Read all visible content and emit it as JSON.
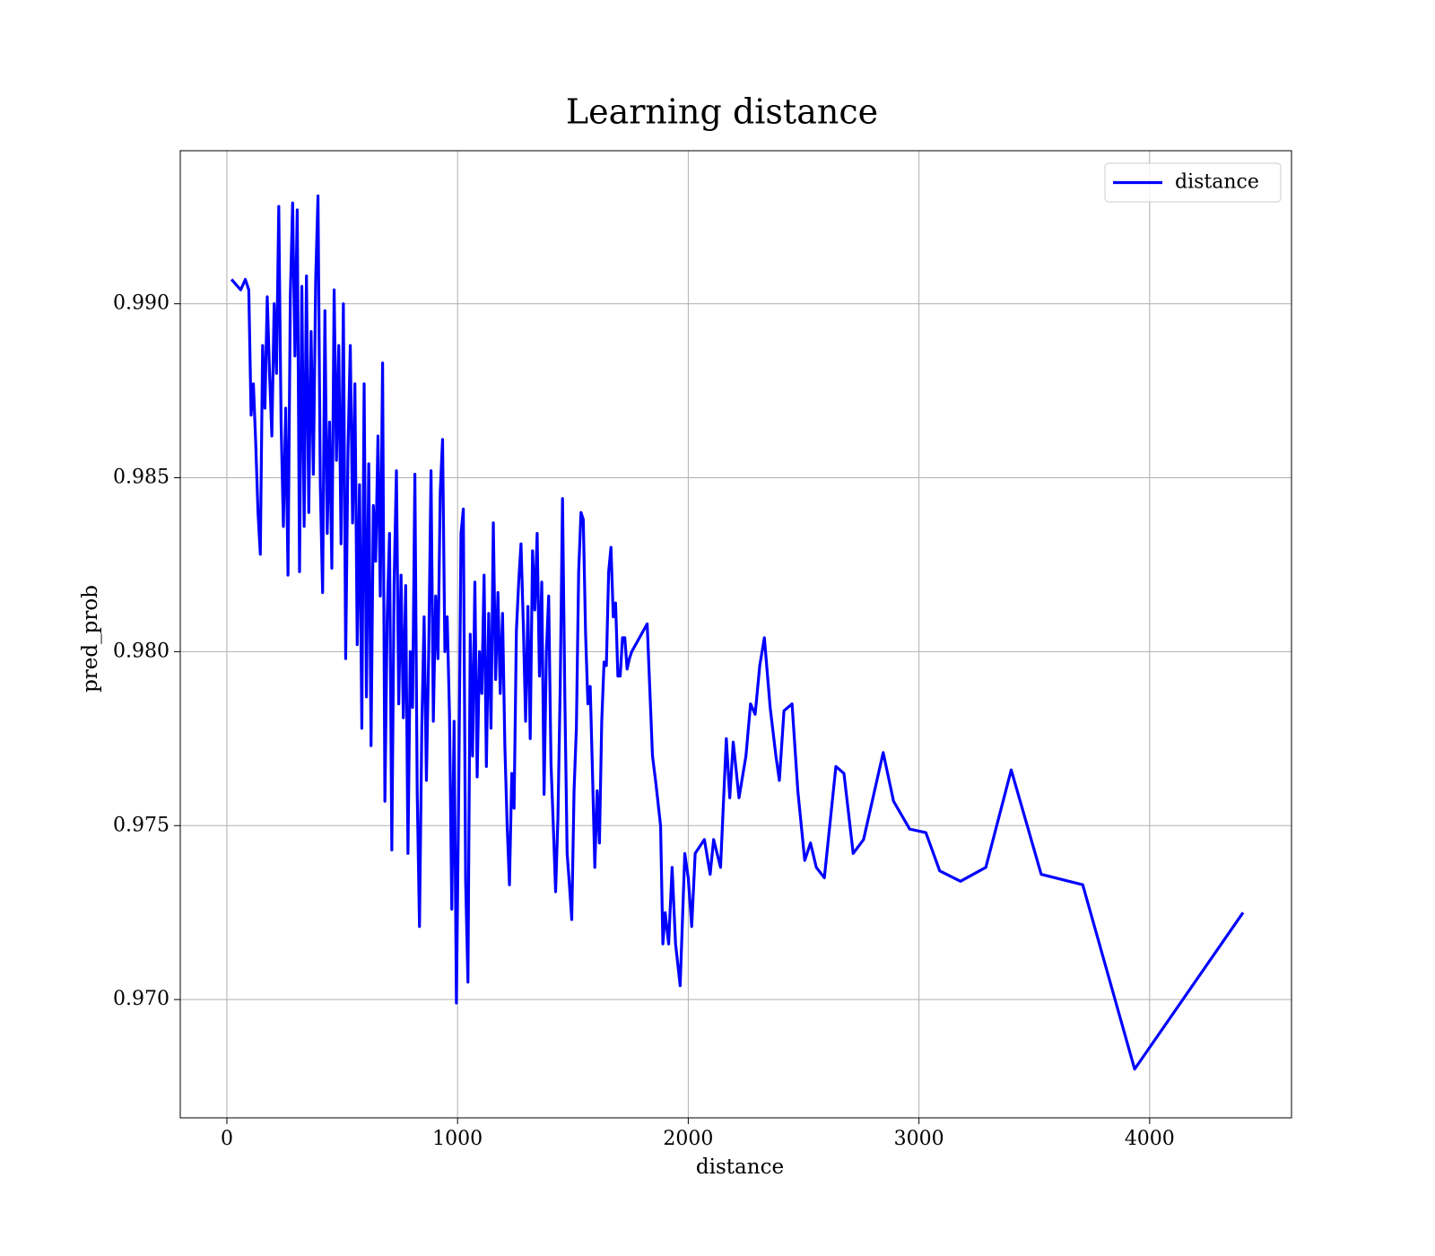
{
  "chart_data": {
    "type": "line",
    "title": "Learning distance",
    "x_label": "distance",
    "y_label": "pred_prob",
    "x": [
      20,
      60,
      80,
      95,
      105,
      115,
      125,
      135,
      145,
      155,
      165,
      175,
      185,
      195,
      205,
      215,
      225,
      235,
      245,
      255,
      265,
      275,
      285,
      295,
      305,
      315,
      325,
      335,
      345,
      355,
      365,
      375,
      385,
      395,
      405,
      415,
      425,
      435,
      445,
      455,
      465,
      475,
      485,
      495,
      505,
      515,
      525,
      535,
      545,
      555,
      565,
      575,
      585,
      595,
      605,
      615,
      625,
      635,
      645,
      655,
      665,
      675,
      685,
      695,
      705,
      715,
      725,
      735,
      745,
      755,
      765,
      775,
      785,
      795,
      805,
      815,
      825,
      835,
      845,
      855,
      865,
      875,
      885,
      895,
      905,
      915,
      925,
      935,
      945,
      955,
      965,
      975,
      985,
      995,
      1005,
      1015,
      1025,
      1035,
      1045,
      1055,
      1065,
      1075,
      1085,
      1095,
      1105,
      1115,
      1125,
      1135,
      1145,
      1155,
      1165,
      1175,
      1185,
      1195,
      1205,
      1215,
      1225,
      1235,
      1245,
      1255,
      1265,
      1275,
      1285,
      1295,
      1305,
      1315,
      1325,
      1335,
      1345,
      1355,
      1365,
      1375,
      1385,
      1395,
      1405,
      1415,
      1425,
      1435,
      1445,
      1455,
      1465,
      1475,
      1485,
      1495,
      1505,
      1515,
      1525,
      1535,
      1545,
      1555,
      1565,
      1575,
      1585,
      1595,
      1605,
      1615,
      1625,
      1635,
      1645,
      1655,
      1665,
      1675,
      1685,
      1695,
      1705,
      1715,
      1725,
      1735,
      1745,
      1755,
      1822,
      1845,
      1860,
      1880,
      1890,
      1900,
      1915,
      1930,
      1945,
      1965,
      1985,
      2000,
      2015,
      2030,
      2050,
      2070,
      2095,
      2110,
      2140,
      2165,
      2180,
      2195,
      2220,
      2250,
      2270,
      2290,
      2310,
      2330,
      2355,
      2380,
      2395,
      2415,
      2450,
      2475,
      2505,
      2530,
      2555,
      2590,
      2640,
      2675,
      2715,
      2760,
      2845,
      2890,
      2960,
      3030,
      3090,
      3180,
      3290,
      3400,
      3530,
      3710,
      3935,
      4405
    ],
    "series": [
      {
        "name": "distance",
        "color": "#0000ff",
        "values": [
          0.9907,
          0.9904,
          0.9907,
          0.9904,
          0.9868,
          0.9877,
          0.986,
          0.984,
          0.9828,
          0.9888,
          0.987,
          0.9902,
          0.988,
          0.9862,
          0.99,
          0.988,
          0.9928,
          0.9866,
          0.9836,
          0.987,
          0.9822,
          0.9902,
          0.9929,
          0.9885,
          0.9927,
          0.9823,
          0.9905,
          0.9836,
          0.9908,
          0.984,
          0.9892,
          0.9851,
          0.9907,
          0.9931,
          0.9848,
          0.9817,
          0.9898,
          0.9834,
          0.9866,
          0.9824,
          0.9904,
          0.9855,
          0.9888,
          0.9831,
          0.99,
          0.9798,
          0.9858,
          0.9888,
          0.9837,
          0.9877,
          0.9802,
          0.9848,
          0.9778,
          0.9877,
          0.9787,
          0.9854,
          0.9773,
          0.9842,
          0.9826,
          0.9862,
          0.9816,
          0.9883,
          0.9757,
          0.981,
          0.9834,
          0.9743,
          0.982,
          0.9852,
          0.9785,
          0.9822,
          0.9781,
          0.9819,
          0.9742,
          0.98,
          0.9784,
          0.9851,
          0.976,
          0.9721,
          0.9778,
          0.981,
          0.9763,
          0.98,
          0.9852,
          0.978,
          0.9816,
          0.9798,
          0.9846,
          0.9861,
          0.98,
          0.981,
          0.9782,
          0.9726,
          0.978,
          0.9699,
          0.976,
          0.9834,
          0.9841,
          0.9734,
          0.9705,
          0.9805,
          0.977,
          0.982,
          0.9764,
          0.98,
          0.9788,
          0.9822,
          0.9767,
          0.9811,
          0.9778,
          0.9837,
          0.9792,
          0.9817,
          0.9788,
          0.9811,
          0.9773,
          0.975,
          0.9733,
          0.9765,
          0.9755,
          0.9806,
          0.982,
          0.9831,
          0.9808,
          0.978,
          0.9813,
          0.9775,
          0.9829,
          0.9812,
          0.9834,
          0.9793,
          0.982,
          0.9759,
          0.98,
          0.9816,
          0.9768,
          0.975,
          0.9731,
          0.9752,
          0.979,
          0.9844,
          0.9787,
          0.9742,
          0.9733,
          0.9723,
          0.976,
          0.9778,
          0.9823,
          0.984,
          0.9838,
          0.9805,
          0.9785,
          0.979,
          0.9765,
          0.9738,
          0.976,
          0.9745,
          0.978,
          0.9797,
          0.9796,
          0.9823,
          0.983,
          0.981,
          0.9814,
          0.9793,
          0.9793,
          0.9804,
          0.9804,
          0.9795,
          0.9798,
          0.98,
          0.9808,
          0.977,
          0.9762,
          0.975,
          0.9716,
          0.9725,
          0.9716,
          0.9738,
          0.9716,
          0.9704,
          0.9742,
          0.9735,
          0.9721,
          0.9742,
          0.9744,
          0.9746,
          0.9736,
          0.9746,
          0.9738,
          0.9775,
          0.9758,
          0.9774,
          0.9758,
          0.977,
          0.9785,
          0.9782,
          0.9796,
          0.9804,
          0.9784,
          0.977,
          0.9763,
          0.9783,
          0.9785,
          0.976,
          0.974,
          0.9745,
          0.9738,
          0.9735,
          0.9767,
          0.9765,
          0.9742,
          0.9746,
          0.9771,
          0.9757,
          0.9749,
          0.9748,
          0.9737,
          0.9734,
          0.9738,
          0.9766,
          0.9736,
          0.9733,
          0.968,
          0.9725
        ]
      }
    ],
    "xlim": [
      -202,
      4615
    ],
    "xticks": [
      0,
      1000,
      2000,
      3000,
      4000
    ],
    "ylim": [
      0.9666,
      0.9944
    ],
    "yticks": [
      {
        "value": 0.97,
        "label": "0.970"
      },
      0.975,
      {
        "value": 0.98,
        "label": "0.980"
      },
      0.985,
      {
        "value": 0.99,
        "label": "0.990"
      }
    ],
    "grid": true,
    "legend": "upper right"
  }
}
